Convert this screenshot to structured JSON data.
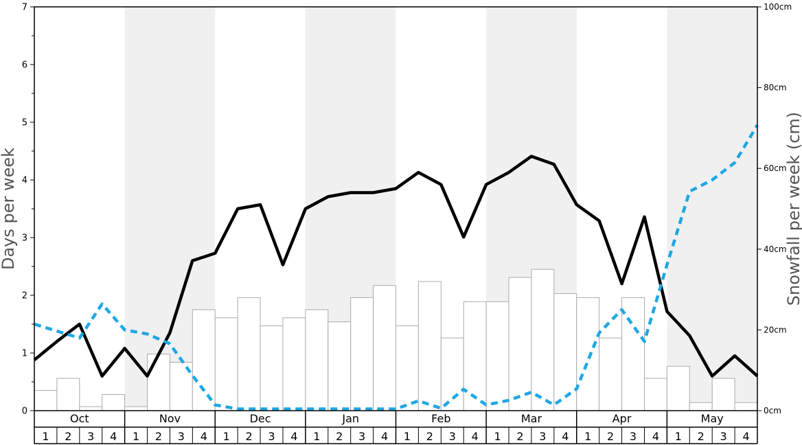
{
  "chart_data": {
    "type": "bar",
    "months": [
      "Oct",
      "Nov",
      "Dec",
      "Jan",
      "Feb",
      "Mar",
      "Apr",
      "May"
    ],
    "weeks": [
      "1",
      "2",
      "3",
      "4"
    ],
    "ylabel_left": "Days per week",
    "ylabel_right": "Snowfall per week (cm)",
    "ylim_left": [
      0,
      7
    ],
    "ylim_right": [
      0,
      100
    ],
    "yticks_left": [
      "0",
      "1",
      "2",
      "3",
      "4",
      "5",
      "6",
      "7"
    ],
    "yticks_right": [
      "0cm",
      "20cm",
      "40cm",
      "60cm",
      "80cm",
      "100cm"
    ],
    "grid": false,
    "shaded_months": [
      "Nov",
      "Jan",
      "Mar",
      "May"
    ],
    "series": [
      {
        "type": "bar",
        "axis": "right",
        "color": "#ffffff",
        "stroke": "#aaaaaa",
        "values": [
          5,
          8,
          1,
          4,
          1,
          14,
          12,
          25,
          23,
          28,
          21,
          23,
          25,
          22,
          28,
          31,
          21,
          32,
          18,
          27,
          27,
          33,
          35,
          29,
          28,
          18,
          28,
          8,
          11,
          2,
          8,
          2
        ]
      },
      {
        "type": "line",
        "axis": "left",
        "color": "#000000",
        "style": "solid",
        "values": [
          0.88,
          1.2,
          1.5,
          0.6,
          1.08,
          0.6,
          1.35,
          2.6,
          2.73,
          3.5,
          3.57,
          2.53,
          3.5,
          3.71,
          3.78,
          3.78,
          3.85,
          4.13,
          3.92,
          3.01,
          3.92,
          4.13,
          4.41,
          4.27,
          3.57,
          3.29,
          2.2,
          3.36,
          1.72,
          1.3,
          0.6,
          0.95,
          0.6
        ]
      },
      {
        "type": "line",
        "axis": "left",
        "color": "#1ea7e4",
        "style": "dashed",
        "values": [
          1.5,
          1.38,
          1.26,
          1.85,
          1.4,
          1.33,
          1.16,
          0.61,
          0.1,
          0.03,
          0.03,
          0.03,
          0.03,
          0.03,
          0.03,
          0.03,
          0.03,
          0.17,
          0.04,
          0.37,
          0.1,
          0.18,
          0.32,
          0.1,
          0.38,
          1.35,
          1.75,
          1.2,
          2.53,
          3.8,
          4.0,
          4.3,
          4.95
        ]
      }
    ]
  }
}
